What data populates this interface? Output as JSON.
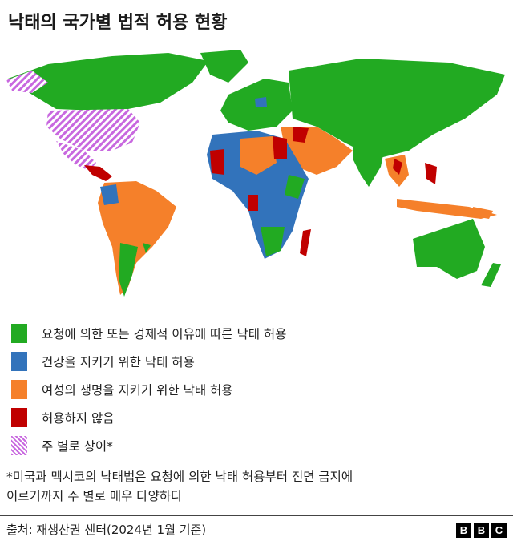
{
  "title": "낙태의 국가별 법적 허용 현황",
  "colors": {
    "on_request": "#22aa22",
    "health": "#3273bb",
    "life": "#f5802a",
    "prohibited": "#c00000",
    "varies": "#c868df"
  },
  "legend": [
    {
      "key": "on_request",
      "label": "요청에 의한 또는 경제적 이유에 따른 낙태 허용"
    },
    {
      "key": "health",
      "label": "건강을 지키기 위한 낙태 허용"
    },
    {
      "key": "life",
      "label": "여성의 생명을 지키기 위한 낙태 허용"
    },
    {
      "key": "prohibited",
      "label": "허용하지 않음"
    },
    {
      "key": "varies",
      "label": "주 별로 상이*"
    }
  ],
  "note_line1": "*미국과 멕시코의 낙태법은 요청에 의한 낙태 허용부터 전면 금지에",
  "note_line2": "이르기까지 주 별로 매우 다양하다",
  "source": "출처: 재생산권 센터(2024년 1월 기준)",
  "logo": [
    "B",
    "B",
    "C"
  ]
}
